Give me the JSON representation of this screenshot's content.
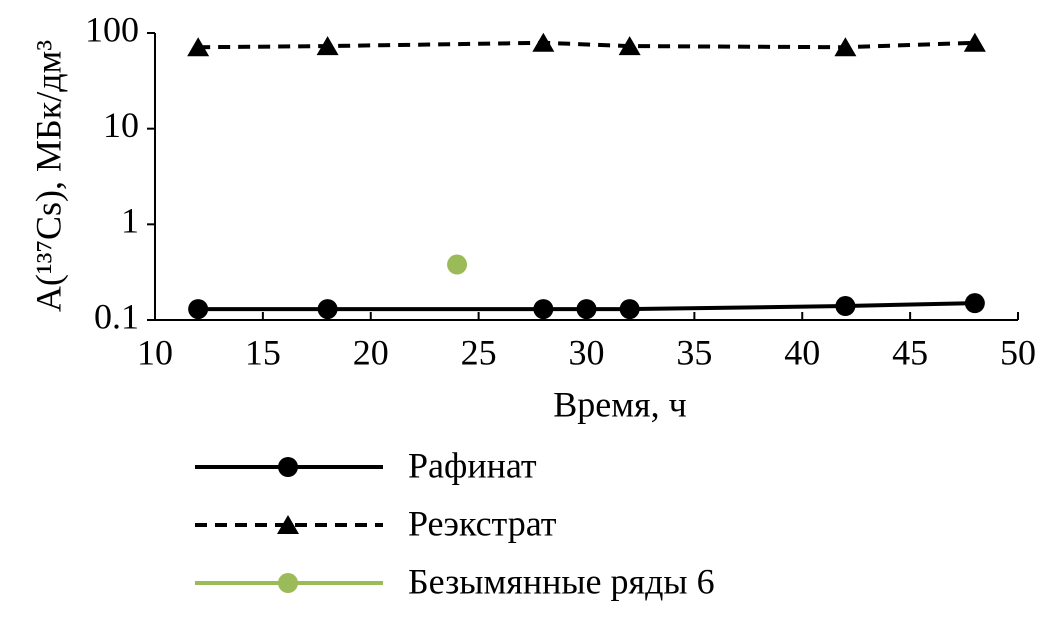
{
  "chart_data": {
    "type": "line",
    "x_label": "Время, ч",
    "y_label": "A(¹³⁷Cs), МБк/дм³",
    "xlim": [
      10,
      50
    ],
    "xticks": [
      10,
      15,
      20,
      25,
      30,
      35,
      40,
      45,
      50
    ],
    "ylim": [
      0.1,
      100
    ],
    "yticks": [
      0.1,
      1,
      10,
      100
    ],
    "y_scale": "log",
    "grid": false,
    "legend": "bottom",
    "series": [
      {
        "name": "Рафинат",
        "color": "#000000",
        "line_style": "solid",
        "marker": "circle",
        "x": [
          12,
          18,
          28,
          30,
          32,
          42,
          48
        ],
        "values": [
          0.13,
          0.13,
          0.13,
          0.13,
          0.13,
          0.14,
          0.15
        ]
      },
      {
        "name": "Реэкстрат",
        "color": "#000000",
        "line_style": "dashed",
        "marker": "triangle",
        "x": [
          12,
          18,
          28,
          32,
          42,
          48
        ],
        "values": [
          71,
          73,
          79,
          73,
          71,
          79
        ]
      },
      {
        "name": "Безымянные ряды 6",
        "color": "#9bbb59",
        "line_style": "solid",
        "marker": "circle",
        "x": [
          24
        ],
        "values": [
          0.38
        ]
      }
    ]
  }
}
